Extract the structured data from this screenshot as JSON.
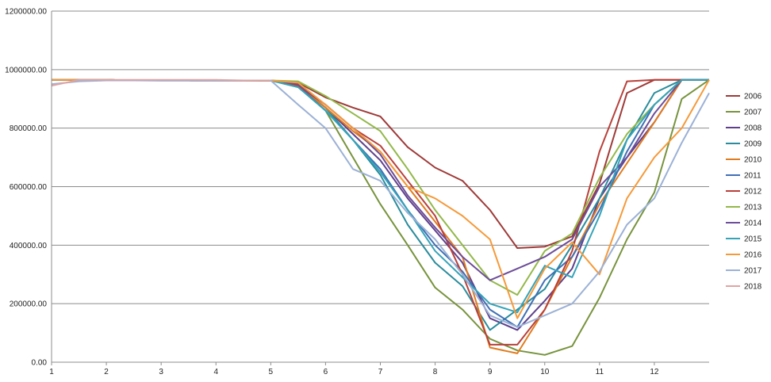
{
  "chart_data": {
    "type": "line",
    "title": "",
    "xlabel": "",
    "ylabel": "",
    "xlim": [
      1,
      13
    ],
    "ylim": [
      0,
      1200000
    ],
    "x_ticks": [
      "1",
      "2",
      "3",
      "4",
      "5",
      "6",
      "7",
      "8",
      "9",
      "10",
      "11",
      "12"
    ],
    "y_ticks": [
      "0.00",
      "200000.00",
      "400000.00",
      "600000.00",
      "800000.00",
      "1000000.00",
      "1200000.00"
    ],
    "grid": "horizontal",
    "legend_position": "right",
    "colors": [
      "#9e3a38",
      "#77933c",
      "#5f3f8c",
      "#2a8c9c",
      "#e07b1e",
      "#3f6fb5",
      "#b8403a",
      "#93b84a",
      "#6d4d98",
      "#35a3b8",
      "#f59a3a",
      "#9bb1d6",
      "#e0a3a3"
    ],
    "x": [
      1,
      1.5,
      2,
      2.5,
      3,
      3.5,
      4,
      4.5,
      5,
      5.5,
      6,
      6.5,
      7,
      7.5,
      8,
      8.5,
      9,
      9.5,
      10,
      10.5,
      11,
      11.5,
      12,
      12.5,
      13
    ],
    "series": [
      {
        "name": "2006",
        "values": [
          965000,
          965000,
          965000,
          963000,
          963000,
          963000,
          962000,
          962000,
          963000,
          955000,
          905000,
          870000,
          840000,
          735000,
          665000,
          620000,
          520000,
          390000,
          395000,
          430000,
          610000,
          920000,
          965000,
          965000,
          965000
        ]
      },
      {
        "name": "2007",
        "values": [
          965000,
          965000,
          965000,
          963000,
          963000,
          963000,
          962000,
          962000,
          963000,
          940000,
          860000,
          700000,
          540000,
          400000,
          255000,
          180000,
          80000,
          40000,
          25000,
          55000,
          220000,
          420000,
          580000,
          900000,
          965000
        ]
      },
      {
        "name": "2008",
        "values": [
          965000,
          965000,
          965000,
          963000,
          963000,
          963000,
          962000,
          962000,
          963000,
          945000,
          870000,
          780000,
          690000,
          560000,
          450000,
          340000,
          150000,
          110000,
          210000,
          320000,
          560000,
          700000,
          820000,
          965000,
          965000
        ]
      },
      {
        "name": "2009",
        "values": [
          965000,
          965000,
          965000,
          963000,
          963000,
          963000,
          962000,
          962000,
          963000,
          945000,
          870000,
          760000,
          640000,
          470000,
          340000,
          260000,
          110000,
          180000,
          250000,
          400000,
          560000,
          760000,
          920000,
          965000,
          965000
        ]
      },
      {
        "name": "2010",
        "values": [
          965000,
          965000,
          965000,
          963000,
          963000,
          963000,
          962000,
          962000,
          963000,
          945000,
          870000,
          790000,
          720000,
          600000,
          480000,
          360000,
          50000,
          30000,
          180000,
          360000,
          540000,
          680000,
          820000,
          965000,
          965000
        ]
      },
      {
        "name": "2011",
        "values": [
          965000,
          965000,
          965000,
          963000,
          963000,
          963000,
          962000,
          962000,
          963000,
          945000,
          860000,
          760000,
          660000,
          520000,
          400000,
          310000,
          180000,
          120000,
          280000,
          360000,
          520000,
          720000,
          880000,
          965000,
          965000
        ]
      },
      {
        "name": "2012",
        "values": [
          965000,
          965000,
          965000,
          963000,
          963000,
          963000,
          962000,
          962000,
          963000,
          945000,
          880000,
          800000,
          740000,
          620000,
          500000,
          300000,
          60000,
          60000,
          180000,
          380000,
          720000,
          960000,
          965000,
          965000,
          965000
        ]
      },
      {
        "name": "2013",
        "values": [
          965000,
          965000,
          965000,
          963000,
          963000,
          963000,
          962000,
          962000,
          963000,
          960000,
          910000,
          850000,
          790000,
          660000,
          520000,
          400000,
          280000,
          230000,
          380000,
          440000,
          630000,
          780000,
          880000,
          965000,
          965000
        ]
      },
      {
        "name": "2014",
        "values": [
          965000,
          965000,
          965000,
          963000,
          963000,
          963000,
          962000,
          962000,
          963000,
          950000,
          880000,
          800000,
          710000,
          570000,
          460000,
          360000,
          280000,
          320000,
          360000,
          420000,
          600000,
          700000,
          850000,
          965000,
          965000
        ]
      },
      {
        "name": "2015",
        "values": [
          965000,
          965000,
          965000,
          963000,
          963000,
          963000,
          962000,
          962000,
          963000,
          940000,
          860000,
          760000,
          650000,
          520000,
          380000,
          290000,
          200000,
          170000,
          330000,
          290000,
          500000,
          760000,
          880000,
          965000,
          965000
        ]
      },
      {
        "name": "2016",
        "values": [
          965000,
          965000,
          965000,
          963000,
          963000,
          963000,
          962000,
          962000,
          963000,
          955000,
          880000,
          800000,
          720000,
          600000,
          560000,
          500000,
          420000,
          150000,
          320000,
          410000,
          300000,
          560000,
          700000,
          800000,
          965000
        ]
      },
      {
        "name": "2017",
        "values": [
          950000,
          960000,
          963000,
          963000,
          962000,
          962000,
          962000,
          962000,
          963000,
          880000,
          800000,
          660000,
          620000,
          510000,
          420000,
          300000,
          160000,
          120000,
          160000,
          200000,
          310000,
          470000,
          560000,
          750000,
          920000
        ]
      },
      {
        "name": "2018",
        "values": [
          945000,
          965000,
          965000,
          965000,
          965000,
          965000,
          965000,
          963000,
          963000,
          null,
          null,
          null,
          null,
          null,
          null,
          null,
          null,
          null,
          null,
          null,
          null,
          null,
          null,
          null,
          null
        ]
      }
    ]
  }
}
